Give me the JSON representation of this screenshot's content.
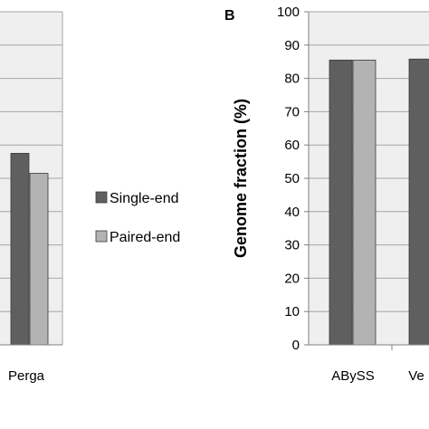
{
  "colors": {
    "plot_bg": "#efefef",
    "grid": "#a6a6a6",
    "axis": "#808080",
    "bar_outline": "#3a3a3a"
  },
  "chart_data": [
    {
      "panel": "",
      "type": "bar",
      "categories": [
        "Perga"
      ],
      "series": [
        {
          "name": "Single-end",
          "values": [
            57.5
          ],
          "color": "#5f5f5f"
        },
        {
          "name": "Paired-end",
          "values": [
            51.5
          ],
          "color": "#b3b3b3"
        }
      ],
      "ylim": [
        0,
        100
      ],
      "ylabel": "",
      "grid": true
    },
    {
      "panel": "B",
      "type": "bar",
      "categories": [
        "ABySS",
        "Ve"
      ],
      "series": [
        {
          "name": "Single-end",
          "values": [
            85.5,
            85.8
          ],
          "color": "#5f5f5f"
        },
        {
          "name": "Paired-end",
          "values": [
            85.5,
            null
          ],
          "color": "#b3b3b3"
        }
      ],
      "yticks": [
        "0",
        "10",
        "20",
        "30",
        "40",
        "50",
        "60",
        "70",
        "80",
        "90",
        "100"
      ],
      "ylim": [
        0,
        100
      ],
      "ylabel": "Genome fraction (%)",
      "grid": true
    }
  ],
  "legend": {
    "placement": "center",
    "items": [
      {
        "label": "Single-end",
        "color": "#5f5f5f"
      },
      {
        "label": "Paired-end",
        "color": "#b3b3b3"
      }
    ]
  }
}
